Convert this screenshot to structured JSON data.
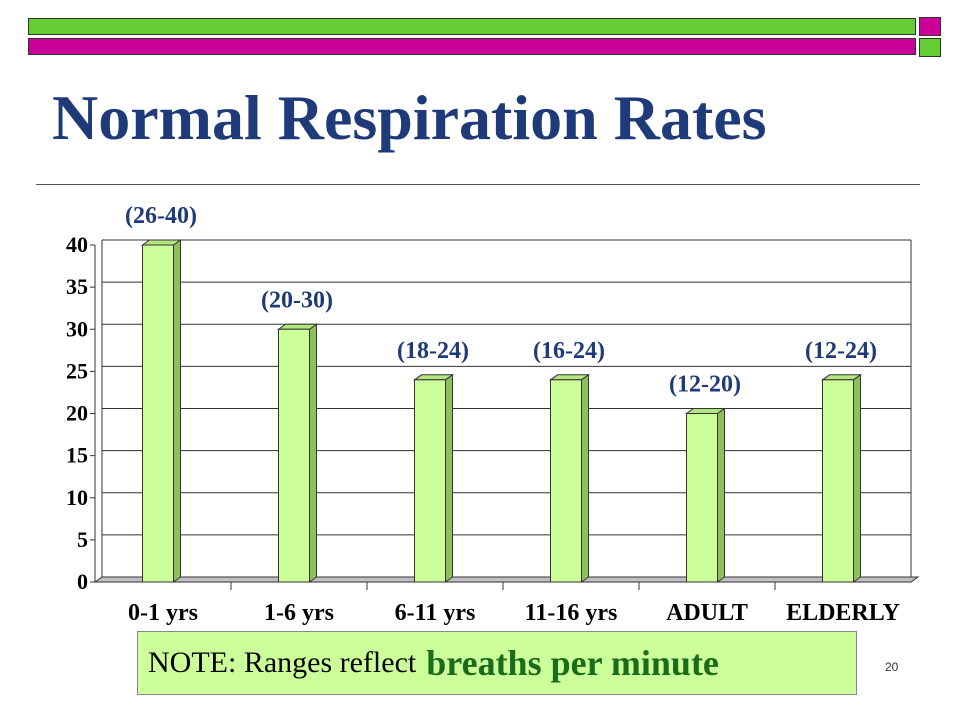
{
  "slide": {
    "title": "Normal Respiration Rates",
    "note_prefix": "NOTE: Ranges reflect",
    "note_emphasis": "breaths per minute",
    "page_number": "20"
  },
  "colors": {
    "title": "#1f3a78",
    "top_strip": "#66cc33",
    "bottom_strip": "#cc0099",
    "bar": "#ccff99",
    "note_emphasis": "#1a6b1a"
  },
  "chart_data": {
    "type": "bar",
    "categories": [
      "0-1 yrs",
      "1-6 yrs",
      "6-11 yrs",
      "11-16 yrs",
      "ADULT",
      "ELDERLY"
    ],
    "values": [
      40,
      30,
      24,
      24,
      20,
      24
    ],
    "data_labels": [
      "(26-40)",
      "(20-30)",
      "(18-24)",
      "(16-24)",
      "(12-20)",
      "(12-24)"
    ],
    "yticks": [
      0,
      5,
      10,
      15,
      20,
      25,
      30,
      35,
      40
    ],
    "ylim": [
      0,
      40
    ],
    "grid": true,
    "style": "3d"
  }
}
